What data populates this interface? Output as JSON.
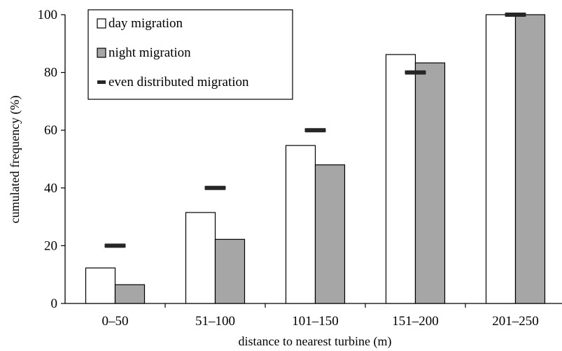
{
  "chart_data": {
    "type": "bar",
    "title": "",
    "xlabel": "distance to nearest turbine (m)",
    "ylabel": "cumulated frequency (%)",
    "ylim": [
      0,
      100
    ],
    "yticks": [
      0,
      20,
      40,
      60,
      80,
      100
    ],
    "categories": [
      "0–50",
      "51–100",
      "101–150",
      "151–200",
      "201–250"
    ],
    "series": [
      {
        "name": "day migration",
        "values": [
          12.3,
          31.5,
          54.7,
          86.2,
          100
        ],
        "color": "#ffffff",
        "mark": "bar"
      },
      {
        "name": "night migration",
        "values": [
          6.5,
          22.2,
          48.0,
          83.3,
          100
        ],
        "color": "#a6a6a6",
        "mark": "bar"
      },
      {
        "name": "even distributed migration",
        "values": [
          20,
          40,
          60,
          80,
          100
        ],
        "color": "#262626",
        "mark": "dash"
      }
    ],
    "legend_position": "top-left",
    "grid": false
  }
}
